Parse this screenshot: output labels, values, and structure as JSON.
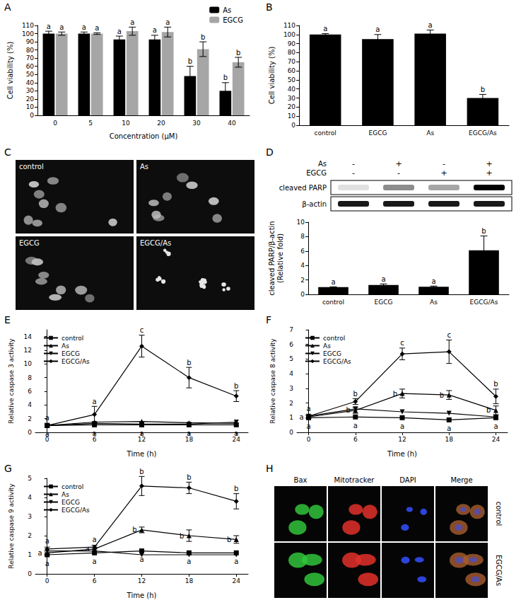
{
  "chart_data": [
    {
      "panel": "A",
      "type": "bar",
      "categories": [
        "0",
        "5",
        "10",
        "20",
        "30",
        "40"
      ],
      "x_label": "Concentration (μM)",
      "y_label": "Cell viability (%)",
      "ylim": [
        0,
        110
      ],
      "yticks": [
        0,
        10,
        20,
        30,
        40,
        50,
        60,
        70,
        80,
        90,
        100,
        110
      ],
      "grid": false,
      "legend": "top-right",
      "series": [
        {
          "name": "As",
          "color": "#000000",
          "values": [
            100,
            100,
            93,
            93,
            48,
            30
          ],
          "errors": [
            3,
            2,
            4,
            5,
            12,
            10
          ],
          "letters": [
            "a",
            "a",
            "a",
            "a",
            "b",
            "b"
          ]
        },
        {
          "name": "EGCG",
          "color": "#a6a6a6",
          "values": [
            100,
            100,
            103,
            102,
            81,
            65
          ],
          "errors": [
            2,
            1,
            5,
            6,
            9,
            6
          ],
          "letters": [
            "a",
            "a",
            "a",
            "a",
            "b",
            "b"
          ]
        }
      ]
    },
    {
      "panel": "B",
      "type": "bar",
      "categories": [
        "control",
        "EGCG",
        "As",
        "EGCG/As"
      ],
      "y_label": "Cell viability (%)",
      "ylim": [
        0,
        110
      ],
      "yticks": [
        0,
        10,
        20,
        30,
        40,
        50,
        60,
        70,
        80,
        90,
        100,
        110
      ],
      "grid": false,
      "color": "#000000",
      "values": [
        100,
        95,
        101,
        30
      ],
      "errors": [
        1,
        5,
        4,
        4
      ],
      "letters": [
        "a",
        "a",
        "a",
        "b"
      ]
    },
    {
      "panel": "D",
      "type": "bar",
      "categories": [
        "control",
        "EGCG",
        "As",
        "EGCG/As"
      ],
      "y_label": "cleaved PARP/β-actin\n(Relative fold)",
      "ylim": [
        0,
        10
      ],
      "yticks": [
        0,
        2,
        4,
        6,
        8,
        10
      ],
      "grid": false,
      "color": "#000000",
      "values": [
        1,
        1.3,
        1.05,
        6.1
      ],
      "errors": [
        0.05,
        0.15,
        0.1,
        2
      ],
      "letters": [
        "a",
        "a",
        "a",
        "b"
      ]
    },
    {
      "panel": "E",
      "type": "line",
      "x": [
        0,
        6,
        12,
        18,
        24
      ],
      "x_label": "Time (h)",
      "y_label": "Relative caspase 3 activity",
      "xlim": [
        -1.5,
        25.5
      ],
      "xticks": [
        0,
        6,
        12,
        18,
        24
      ],
      "ylim": [
        0,
        15
      ],
      "yticks": [
        0,
        2,
        4,
        6,
        8,
        10,
        12,
        14
      ],
      "grid": false,
      "legend": "top-left",
      "series": [
        {
          "name": "control",
          "color": "#000000",
          "marker": "square",
          "values": [
            1,
            1.1,
            1.1,
            1.1,
            1.1
          ],
          "letters": [
            "a",
            "a",
            "a",
            "a",
            "a"
          ]
        },
        {
          "name": "As",
          "color": "#000000",
          "marker": "triangle-up",
          "values": [
            1,
            1.5,
            1.6,
            1.4,
            1.3
          ]
        },
        {
          "name": "EGCG",
          "color": "#000000",
          "marker": "triangle-down",
          "values": [
            1,
            1.3,
            1.2,
            1.2,
            1.5
          ]
        },
        {
          "name": "EGCG/As",
          "color": "#000000",
          "marker": "diamond",
          "values": [
            1,
            2.6,
            12.6,
            8,
            5.3
          ],
          "errors": [
            0.2,
            1.2,
            1.6,
            1.5,
            0.8
          ],
          "letters": [
            "a",
            "a",
            "c",
            "b",
            "b"
          ]
        }
      ]
    },
    {
      "panel": "F",
      "type": "line",
      "x": [
        0,
        6,
        12,
        18,
        24
      ],
      "x_label": "Time (h)",
      "y_label": "Relative caspase 8 activity",
      "xlim": [
        -1.5,
        25.5
      ],
      "xticks": [
        0,
        6,
        12,
        18,
        24
      ],
      "ylim": [
        0,
        7
      ],
      "yticks": [
        0,
        1,
        2,
        3,
        4,
        5,
        6,
        7
      ],
      "grid": false,
      "legend": "top-left",
      "series": [
        {
          "name": "control",
          "color": "#000000",
          "marker": "square",
          "values": [
            1,
            1.05,
            1,
            0.85,
            1
          ],
          "letters": [
            "a",
            "a",
            "a",
            "a",
            "a"
          ]
        },
        {
          "name": "As",
          "color": "#000000",
          "marker": "triangle-up",
          "values": [
            1.05,
            1.5,
            2.65,
            2.55,
            1.5
          ],
          "errors": [
            0.1,
            0.2,
            0.3,
            0.3,
            0.3
          ],
          "letters": [
            "a",
            "b",
            "b",
            "b",
            "b"
          ]
        },
        {
          "name": "EGCG",
          "color": "#000000",
          "marker": "triangle-down",
          "values": [
            1.1,
            1.6,
            1.4,
            1.3,
            1.05
          ]
        },
        {
          "name": "EGCG/As",
          "color": "#000000",
          "marker": "diamond",
          "values": [
            1.1,
            2.1,
            5.35,
            5.5,
            2.45
          ],
          "errors": [
            0.1,
            0.2,
            0.4,
            0.8,
            0.5
          ],
          "letters": [
            "a",
            "b",
            "c",
            "c",
            "b"
          ]
        }
      ]
    },
    {
      "panel": "G",
      "type": "line",
      "x": [
        0,
        6,
        12,
        18,
        24
      ],
      "x_label": "Time (h)",
      "y_label": "Relative caspase 9 activity",
      "xlim": [
        -1.5,
        25.5
      ],
      "xticks": [
        0,
        6,
        12,
        18,
        24
      ],
      "ylim": [
        0,
        5
      ],
      "yticks": [
        0,
        1,
        2,
        3,
        4,
        5
      ],
      "grid": false,
      "legend": "top-left",
      "series": [
        {
          "name": "control",
          "color": "#000000",
          "marker": "square",
          "values": [
            1,
            1.1,
            1.2,
            1.1,
            1.1
          ],
          "letters": [
            "a",
            "a",
            "a",
            "a",
            "a"
          ]
        },
        {
          "name": "As",
          "color": "#000000",
          "marker": "triangle-up",
          "values": [
            1.1,
            1.3,
            2.3,
            2,
            1.8
          ],
          "errors": [
            0.1,
            0.1,
            0.15,
            0.3,
            0.2
          ],
          "letters": [
            "a",
            "a",
            "b",
            "b",
            "b"
          ]
        },
        {
          "name": "EGCG",
          "color": "#000000",
          "marker": "triangle-down",
          "values": [
            1.2,
            1.2,
            1,
            1,
            1
          ]
        },
        {
          "name": "EGCG/As",
          "color": "#000000",
          "marker": "diamond",
          "values": [
            1.3,
            1.4,
            4.6,
            4.5,
            3.8
          ],
          "errors": [
            0.1,
            0.1,
            0.5,
            0.3,
            0.4
          ],
          "letters": [
            "a",
            "a",
            "b",
            "b",
            "b"
          ]
        }
      ]
    }
  ],
  "figures": [
    {
      "panel": "C",
      "type": "micrographs",
      "labels": [
        "control",
        "As",
        "EGCG",
        "EGCG/As"
      ]
    },
    {
      "type": "blot",
      "columns": [
        {
          "label": "As",
          "signs": [
            "-",
            "+",
            "-",
            "+"
          ]
        },
        {
          "label": "EGCG",
          "signs": [
            "-",
            "-",
            "+",
            "+"
          ]
        }
      ],
      "rows": [
        {
          "label": "cleaved PARP",
          "bands": [
            0.12,
            0.45,
            0.35,
            1
          ]
        },
        {
          "label": "β-actin",
          "bands": [
            0.9,
            0.9,
            0.9,
            0.9
          ]
        }
      ]
    },
    {
      "panel": "H",
      "type": "micrograph_grid",
      "columns": [
        "Bax",
        "Mitotracker",
        "DAPI",
        "Merge"
      ],
      "rows": [
        "control",
        "EGCG/As"
      ]
    }
  ]
}
